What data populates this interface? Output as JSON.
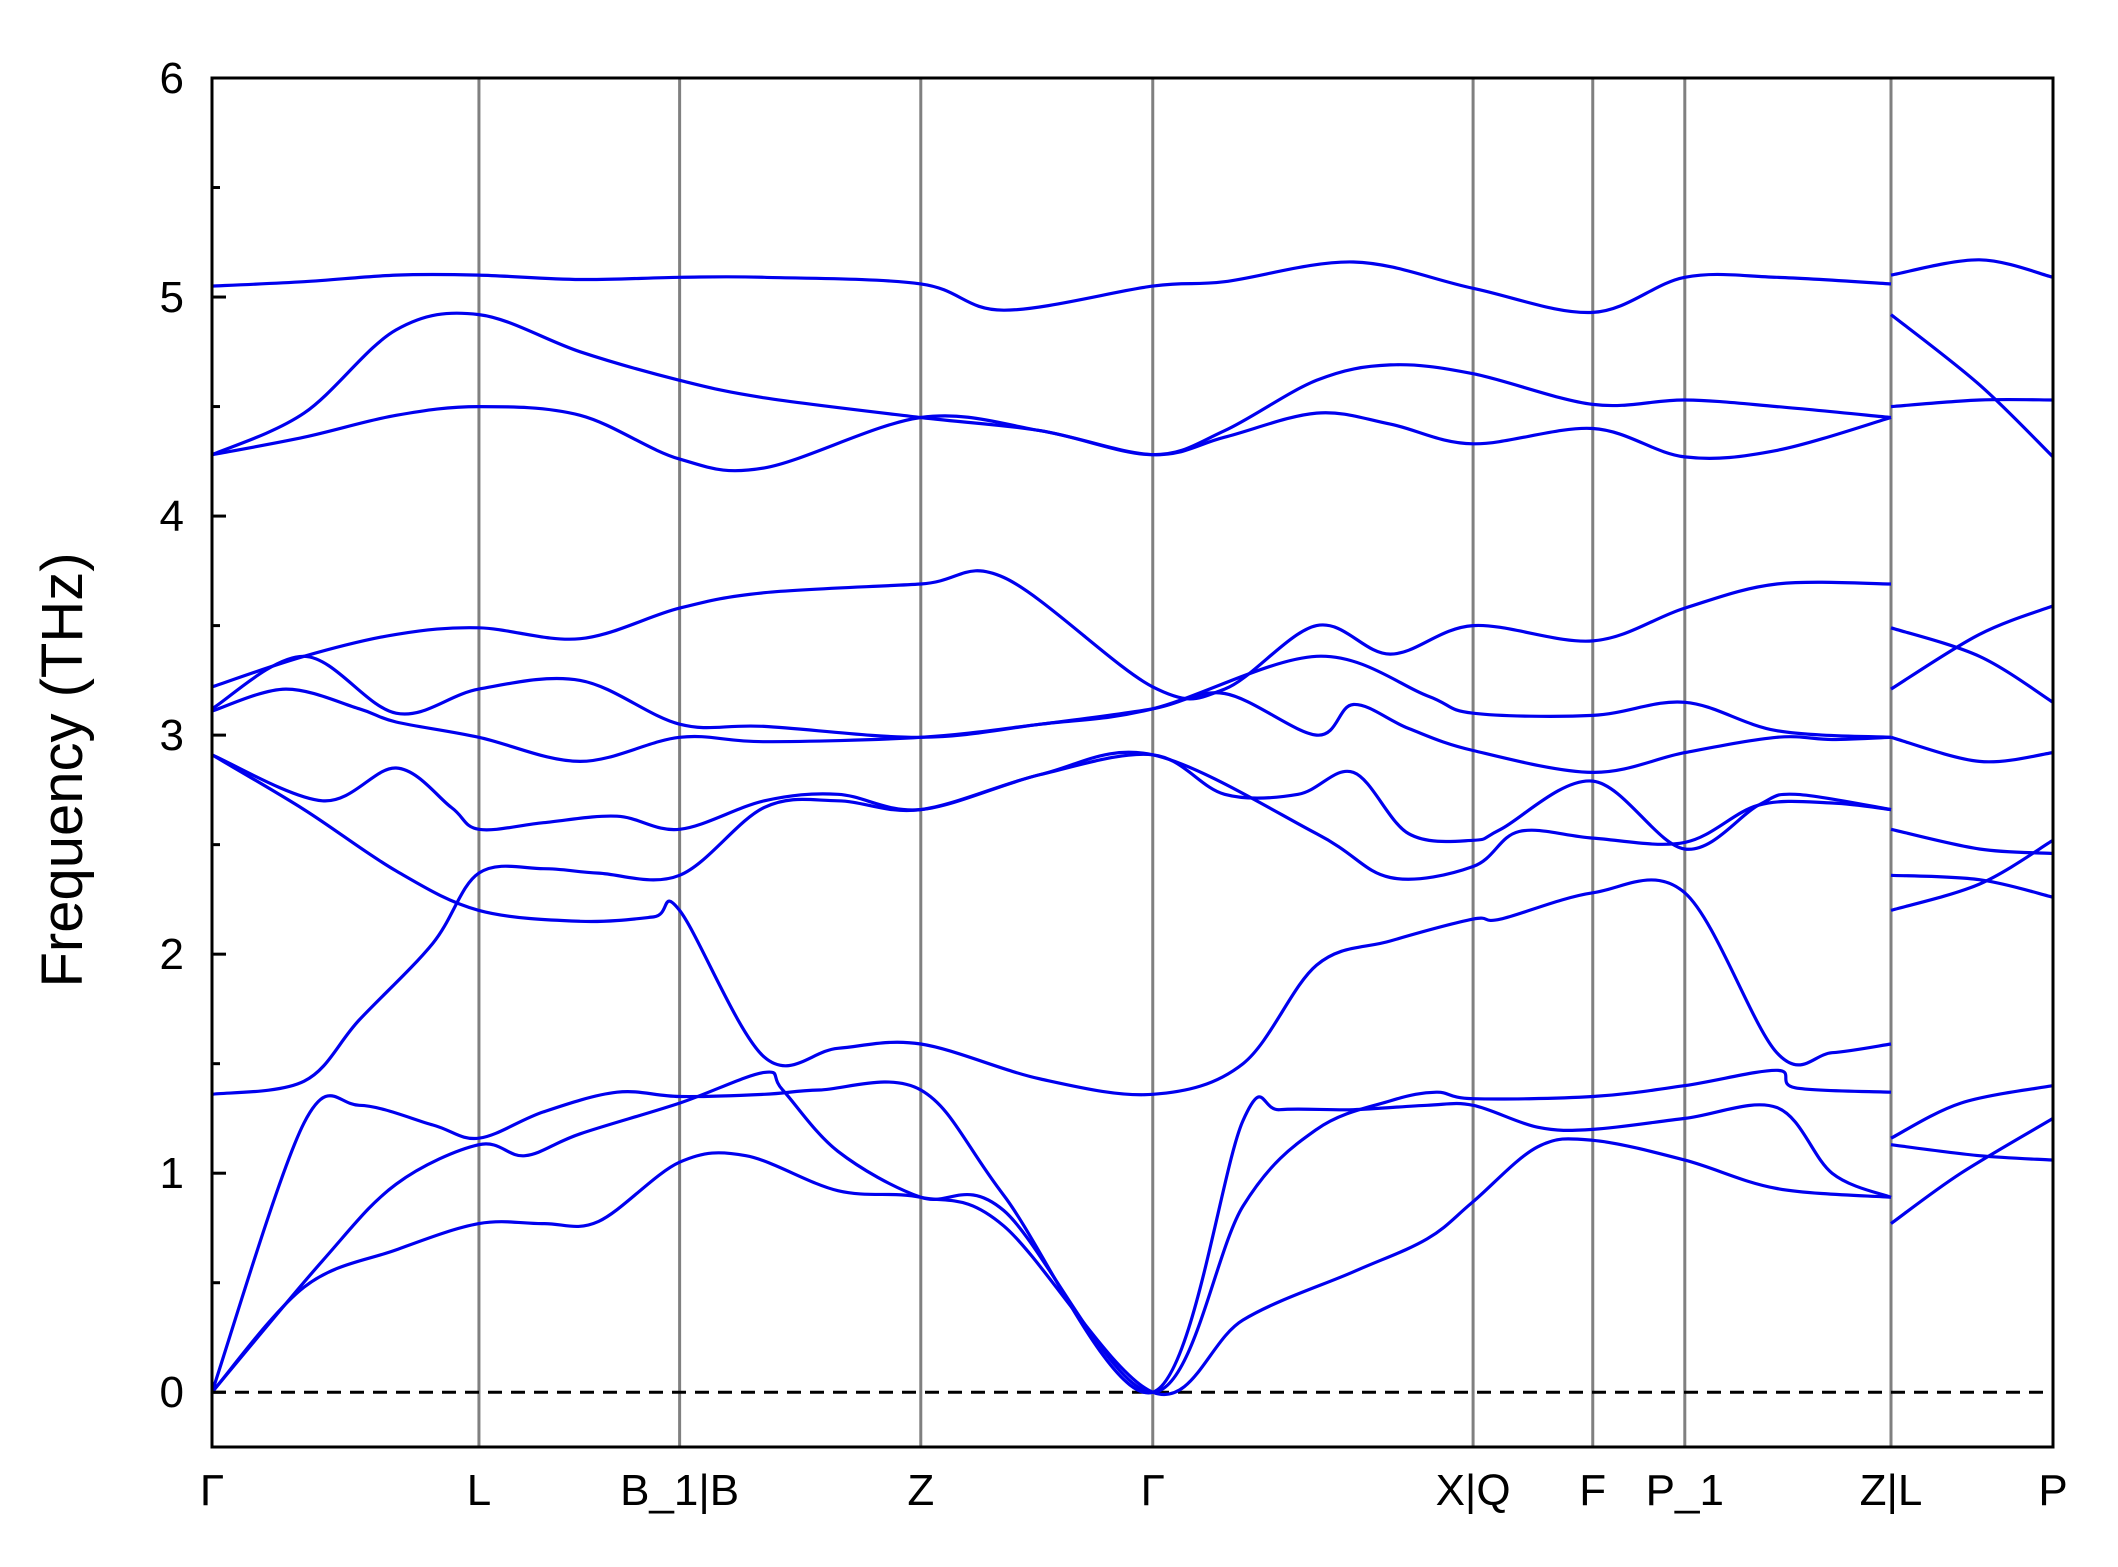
{
  "chart_data": {
    "type": "line",
    "title": "",
    "xlabel": "",
    "ylabel": "Frequency (THz)",
    "ylim": [
      -0.25,
      6
    ],
    "yticks": [
      "0",
      "1",
      "2",
      "3",
      "4",
      "5",
      "6"
    ],
    "grid": false,
    "legend": "none",
    "colors": {
      "band": "#0000ee",
      "kline": "#808080",
      "zero": "#000000",
      "frame": "#000000"
    },
    "kpoints": [
      {
        "label": "Γ",
        "x": 0.0
      },
      {
        "label": "L",
        "x": 0.145
      },
      {
        "label": "B_1|B",
        "x": 0.254
      },
      {
        "label": "Z",
        "x": 0.385
      },
      {
        "label": "Γ",
        "x": 0.511
      },
      {
        "label": "X|Q",
        "x": 0.685
      },
      {
        "label": "F",
        "x": 0.75
      },
      {
        "label": "P_1",
        "x": 0.8
      },
      {
        "label": "Z|L",
        "x": 0.912
      },
      {
        "label": "P",
        "x": 1.0
      }
    ],
    "segment_breaks": [
      0.912
    ],
    "zero_line": 0,
    "bands": [
      [
        [
          0,
          0
        ],
        [
          0.05,
          1.23
        ],
        [
          0.08,
          1.31
        ],
        [
          0.12,
          1.22
        ],
        [
          0.145,
          1.16
        ],
        [
          0.18,
          1.28
        ],
        [
          0.22,
          1.37
        ],
        [
          0.254,
          1.35
        ],
        [
          0.3,
          1.36
        ],
        [
          0.33,
          1.38
        ],
        [
          0.385,
          1.38
        ],
        [
          0.43,
          0.9
        ],
        [
          0.511,
          0
        ],
        [
          0.56,
          1.24
        ],
        [
          0.58,
          1.29
        ],
        [
          0.62,
          1.29
        ],
        [
          0.66,
          1.31
        ],
        [
          0.685,
          1.31
        ],
        [
          0.72,
          1.21
        ],
        [
          0.75,
          1.2
        ],
        [
          0.8,
          1.25
        ],
        [
          0.85,
          1.3
        ],
        [
          0.88,
          1.0
        ],
        [
          0.912,
          0.89
        ],
        [
          null,
          null
        ],
        [
          0.912,
          1.13
        ],
        [
          0.96,
          1.08
        ],
        [
          1.0,
          1.06
        ]
      ],
      [
        [
          0,
          0
        ],
        [
          0.05,
          0.48
        ],
        [
          0.1,
          0.65
        ],
        [
          0.145,
          0.77
        ],
        [
          0.18,
          0.77
        ],
        [
          0.21,
          0.78
        ],
        [
          0.254,
          1.05
        ],
        [
          0.29,
          1.08
        ],
        [
          0.34,
          0.92
        ],
        [
          0.385,
          0.89
        ],
        [
          0.43,
          0.76
        ],
        [
          0.511,
          0
        ],
        [
          0.56,
          0.33
        ],
        [
          0.62,
          0.55
        ],
        [
          0.66,
          0.7
        ],
        [
          0.685,
          0.87
        ],
        [
          0.72,
          1.12
        ],
        [
          0.75,
          1.15
        ],
        [
          0.8,
          1.06
        ],
        [
          0.85,
          0.93
        ],
        [
          0.912,
          0.89
        ],
        [
          null,
          null
        ],
        [
          0.912,
          0.77
        ],
        [
          0.95,
          1.0
        ],
        [
          1.0,
          1.25
        ]
      ],
      [
        [
          0,
          0
        ],
        [
          0.06,
          0.6
        ],
        [
          0.1,
          0.95
        ],
        [
          0.145,
          1.13
        ],
        [
          0.17,
          1.08
        ],
        [
          0.2,
          1.18
        ],
        [
          0.254,
          1.32
        ],
        [
          0.3,
          1.46
        ],
        [
          0.31,
          1.38
        ],
        [
          0.34,
          1.1
        ],
        [
          0.385,
          0.89
        ],
        [
          0.43,
          0.83
        ],
        [
          0.511,
          0
        ],
        [
          0.56,
          0.85
        ],
        [
          0.6,
          1.2
        ],
        [
          0.64,
          1.33
        ],
        [
          0.665,
          1.37
        ],
        [
          0.685,
          1.34
        ],
        [
          0.75,
          1.35
        ],
        [
          0.8,
          1.4
        ],
        [
          0.85,
          1.47
        ],
        [
          0.86,
          1.39
        ],
        [
          0.912,
          1.37
        ],
        [
          null,
          null
        ],
        [
          0.912,
          1.16
        ],
        [
          0.95,
          1.32
        ],
        [
          1.0,
          1.4
        ]
      ],
      [
        [
          0,
          1.36
        ],
        [
          0.05,
          1.42
        ],
        [
          0.08,
          1.7
        ],
        [
          0.12,
          2.05
        ],
        [
          0.145,
          2.37
        ],
        [
          0.18,
          2.39
        ],
        [
          0.21,
          2.37
        ],
        [
          0.254,
          2.36
        ],
        [
          0.3,
          2.67
        ],
        [
          0.34,
          2.7
        ],
        [
          0.385,
          2.66
        ],
        [
          0.45,
          2.82
        ],
        [
          0.511,
          2.91
        ],
        [
          0.55,
          2.73
        ],
        [
          0.59,
          2.73
        ],
        [
          0.62,
          2.83
        ],
        [
          0.65,
          2.55
        ],
        [
          0.685,
          2.52
        ],
        [
          0.7,
          2.57
        ],
        [
          0.75,
          2.79
        ],
        [
          0.8,
          2.48
        ],
        [
          0.84,
          2.68
        ],
        [
          0.86,
          2.73
        ],
        [
          0.912,
          2.66
        ],
        [
          null,
          null
        ],
        [
          0.912,
          2.2
        ],
        [
          0.96,
          2.32
        ],
        [
          1.0,
          2.52
        ]
      ],
      [
        [
          0,
          2.91
        ],
        [
          0.06,
          2.7
        ],
        [
          0.1,
          2.85
        ],
        [
          0.13,
          2.67
        ],
        [
          0.145,
          2.57
        ],
        [
          0.18,
          2.6
        ],
        [
          0.22,
          2.63
        ],
        [
          0.254,
          2.57
        ],
        [
          0.3,
          2.7
        ],
        [
          0.34,
          2.73
        ],
        [
          0.385,
          2.66
        ],
        [
          0.45,
          2.82
        ],
        [
          0.511,
          2.91
        ],
        [
          0.6,
          2.55
        ],
        [
          0.64,
          2.35
        ],
        [
          0.685,
          2.4
        ],
        [
          0.71,
          2.56
        ],
        [
          0.75,
          2.53
        ],
        [
          0.8,
          2.51
        ],
        [
          0.84,
          2.68
        ],
        [
          0.88,
          2.69
        ],
        [
          0.912,
          2.66
        ],
        [
          null,
          null
        ],
        [
          0.912,
          2.36
        ],
        [
          0.96,
          2.34
        ],
        [
          1.0,
          2.26
        ]
      ],
      [
        [
          0,
          2.91
        ],
        [
          0.05,
          2.66
        ],
        [
          0.1,
          2.38
        ],
        [
          0.145,
          2.2
        ],
        [
          0.2,
          2.15
        ],
        [
          0.24,
          2.17
        ],
        [
          0.254,
          2.2
        ],
        [
          0.3,
          1.53
        ],
        [
          0.34,
          1.57
        ],
        [
          0.385,
          1.59
        ],
        [
          0.45,
          1.43
        ],
        [
          0.511,
          1.36
        ],
        [
          0.56,
          1.5
        ],
        [
          0.6,
          1.95
        ],
        [
          0.64,
          2.06
        ],
        [
          0.685,
          2.16
        ],
        [
          0.7,
          2.16
        ],
        [
          0.75,
          2.28
        ],
        [
          0.8,
          2.28
        ],
        [
          0.85,
          1.55
        ],
        [
          0.88,
          1.55
        ],
        [
          0.912,
          1.59
        ],
        [
          null,
          null
        ],
        [
          0.912,
          2.57
        ],
        [
          0.96,
          2.48
        ],
        [
          1.0,
          2.46
        ]
      ],
      [
        [
          0,
          3.11
        ],
        [
          0.04,
          3.21
        ],
        [
          0.08,
          3.12
        ],
        [
          0.1,
          3.06
        ],
        [
          0.145,
          2.99
        ],
        [
          0.2,
          2.88
        ],
        [
          0.254,
          2.99
        ],
        [
          0.3,
          2.97
        ],
        [
          0.385,
          2.99
        ],
        [
          0.45,
          3.05
        ],
        [
          0.511,
          3.12
        ],
        [
          0.55,
          3.19
        ],
        [
          0.6,
          3.0
        ],
        [
          0.62,
          3.14
        ],
        [
          0.65,
          3.03
        ],
        [
          0.685,
          2.93
        ],
        [
          0.75,
          2.83
        ],
        [
          0.8,
          2.92
        ],
        [
          0.85,
          2.99
        ],
        [
          0.88,
          2.98
        ],
        [
          0.912,
          2.99
        ],
        [
          null,
          null
        ],
        [
          0.912,
          3.21
        ],
        [
          0.96,
          3.46
        ],
        [
          1.0,
          3.59
        ]
      ],
      [
        [
          0,
          3.12
        ],
        [
          0.05,
          3.36
        ],
        [
          0.1,
          3.1
        ],
        [
          0.145,
          3.21
        ],
        [
          0.2,
          3.25
        ],
        [
          0.254,
          3.05
        ],
        [
          0.3,
          3.04
        ],
        [
          0.385,
          2.99
        ],
        [
          0.45,
          3.05
        ],
        [
          0.511,
          3.12
        ],
        [
          0.6,
          3.36
        ],
        [
          0.66,
          3.18
        ],
        [
          0.685,
          3.1
        ],
        [
          0.75,
          3.09
        ],
        [
          0.8,
          3.15
        ],
        [
          0.85,
          3.02
        ],
        [
          0.912,
          2.99
        ],
        [
          null,
          null
        ],
        [
          0.912,
          2.99
        ],
        [
          0.96,
          2.88
        ],
        [
          1.0,
          2.92
        ]
      ],
      [
        [
          0,
          3.22
        ],
        [
          0.05,
          3.36
        ],
        [
          0.1,
          3.46
        ],
        [
          0.145,
          3.49
        ],
        [
          0.2,
          3.44
        ],
        [
          0.254,
          3.58
        ],
        [
          0.3,
          3.65
        ],
        [
          0.385,
          3.69
        ],
        [
          0.43,
          3.72
        ],
        [
          0.511,
          3.22
        ],
        [
          0.55,
          3.21
        ],
        [
          0.6,
          3.5
        ],
        [
          0.64,
          3.37
        ],
        [
          0.685,
          3.5
        ],
        [
          0.75,
          3.43
        ],
        [
          0.8,
          3.58
        ],
        [
          0.85,
          3.69
        ],
        [
          0.912,
          3.69
        ],
        [
          null,
          null
        ],
        [
          0.912,
          3.49
        ],
        [
          0.96,
          3.36
        ],
        [
          1.0,
          3.15
        ]
      ],
      [
        [
          0,
          4.28
        ],
        [
          0.05,
          4.36
        ],
        [
          0.1,
          4.46
        ],
        [
          0.145,
          4.5
        ],
        [
          0.2,
          4.46
        ],
        [
          0.254,
          4.26
        ],
        [
          0.3,
          4.22
        ],
        [
          0.385,
          4.45
        ],
        [
          0.45,
          4.39
        ],
        [
          0.511,
          4.28
        ],
        [
          0.55,
          4.36
        ],
        [
          0.6,
          4.47
        ],
        [
          0.64,
          4.42
        ],
        [
          0.685,
          4.33
        ],
        [
          0.75,
          4.4
        ],
        [
          0.8,
          4.27
        ],
        [
          0.85,
          4.3
        ],
        [
          0.912,
          4.45
        ],
        [
          null,
          null
        ],
        [
          0.912,
          4.92
        ],
        [
          0.96,
          4.6
        ],
        [
          1.0,
          4.27
        ]
      ],
      [
        [
          0,
          4.28
        ],
        [
          0.05,
          4.47
        ],
        [
          0.1,
          4.85
        ],
        [
          0.145,
          4.92
        ],
        [
          0.2,
          4.75
        ],
        [
          0.254,
          4.62
        ],
        [
          0.3,
          4.54
        ],
        [
          0.385,
          4.45
        ],
        [
          0.45,
          4.39
        ],
        [
          0.511,
          4.28
        ],
        [
          0.55,
          4.39
        ],
        [
          0.6,
          4.62
        ],
        [
          0.64,
          4.69
        ],
        [
          0.685,
          4.65
        ],
        [
          0.75,
          4.51
        ],
        [
          0.8,
          4.53
        ],
        [
          0.85,
          4.5
        ],
        [
          0.912,
          4.45
        ],
        [
          null,
          null
        ],
        [
          0.912,
          4.5
        ],
        [
          0.96,
          4.53
        ],
        [
          1.0,
          4.53
        ]
      ],
      [
        [
          0,
          5.05
        ],
        [
          0.05,
          5.07
        ],
        [
          0.1,
          5.1
        ],
        [
          0.145,
          5.1
        ],
        [
          0.2,
          5.08
        ],
        [
          0.254,
          5.09
        ],
        [
          0.3,
          5.09
        ],
        [
          0.385,
          5.06
        ],
        [
          0.43,
          4.94
        ],
        [
          0.511,
          5.05
        ],
        [
          0.55,
          5.07
        ],
        [
          0.62,
          5.16
        ],
        [
          0.685,
          5.04
        ],
        [
          0.75,
          4.93
        ],
        [
          0.8,
          5.09
        ],
        [
          0.85,
          5.09
        ],
        [
          0.912,
          5.06
        ],
        [
          null,
          null
        ],
        [
          0.912,
          5.1
        ],
        [
          0.96,
          5.17
        ],
        [
          1.0,
          5.09
        ]
      ]
    ]
  }
}
